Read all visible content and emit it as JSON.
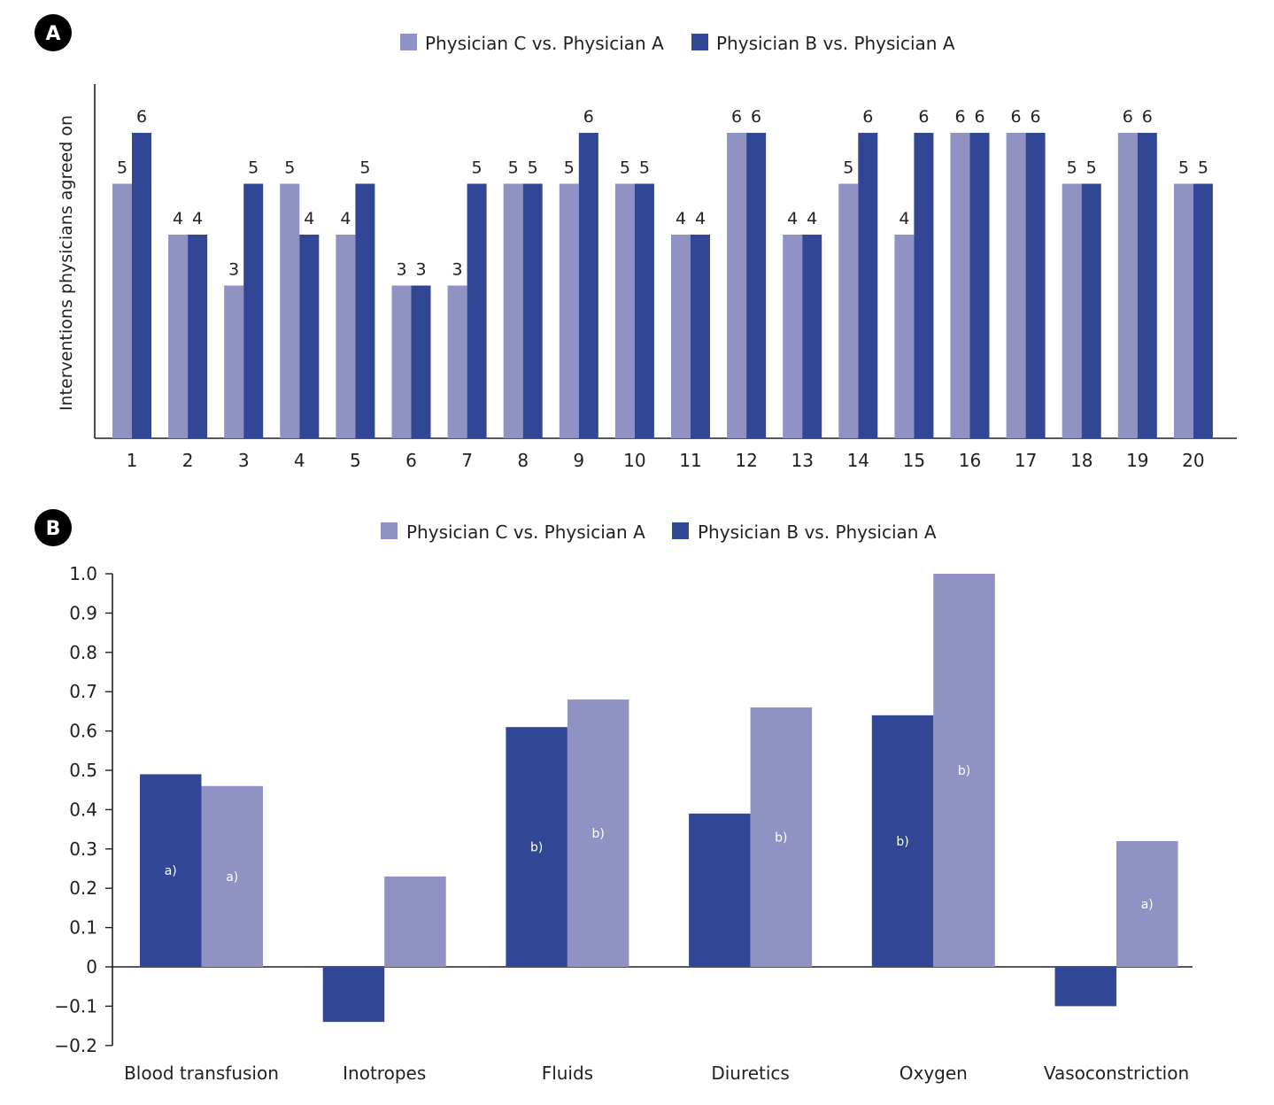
{
  "chart_data": [
    {
      "type": "bar",
      "panel": "A",
      "ylabel": "Interventions physicians agreed on",
      "xlabel": "",
      "ylim": [
        0,
        6
      ],
      "categories": [
        "1",
        "2",
        "3",
        "4",
        "5",
        "6",
        "7",
        "8",
        "9",
        "10",
        "11",
        "12",
        "13",
        "14",
        "15",
        "16",
        "17",
        "18",
        "19",
        "20"
      ],
      "series": [
        {
          "name": "Physician C vs. Physician A",
          "color": "#8f92c2",
          "values": [
            5,
            4,
            3,
            5,
            4,
            3,
            3,
            5,
            5,
            5,
            4,
            6,
            4,
            5,
            4,
            6,
            6,
            5,
            6,
            5
          ]
        },
        {
          "name": "Physician B vs. Physician A",
          "color": "#324696",
          "values": [
            6,
            4,
            5,
            4,
            5,
            3,
            5,
            5,
            6,
            5,
            4,
            6,
            4,
            6,
            6,
            6,
            6,
            5,
            6,
            5
          ]
        }
      ],
      "legend": "top"
    },
    {
      "type": "bar",
      "panel": "B",
      "ylabel": "",
      "xlabel": "",
      "ylim": [
        -0.2,
        1.0
      ],
      "yticks": [
        "1.0",
        "0.9",
        "0.8",
        "0.7",
        "0.6",
        "0.5",
        "0.4",
        "0.3",
        "0.2",
        "0.1",
        "0",
        "−0.1",
        "−0.2"
      ],
      "yticks_values": [
        1.0,
        0.9,
        0.8,
        0.7,
        0.6,
        0.5,
        0.4,
        0.3,
        0.2,
        0.1,
        0,
        -0.1,
        -0.2
      ],
      "categories": [
        "Blood transfusion",
        "Inotropes",
        "Fluids",
        "Diuretics",
        "Oxygen",
        "Vasoconstriction"
      ],
      "series": [
        {
          "name": "Physician B vs. Physician A",
          "color": "#324696",
          "values": [
            0.49,
            -0.14,
            0.61,
            0.39,
            0.64,
            -0.1
          ],
          "annotations": [
            "a)",
            "",
            "b)",
            "",
            "b)",
            ""
          ]
        },
        {
          "name": "Physician C vs. Physician A",
          "color": "#8f92c2",
          "values": [
            0.46,
            0.23,
            0.68,
            0.66,
            1.0,
            0.32
          ],
          "annotations": [
            "a)",
            "",
            "b)",
            "b)",
            "b)",
            "a)"
          ]
        }
      ],
      "legend_order": [
        "Physician C vs. Physician A",
        "Physician B vs. Physician A"
      ],
      "legend": "top"
    }
  ]
}
